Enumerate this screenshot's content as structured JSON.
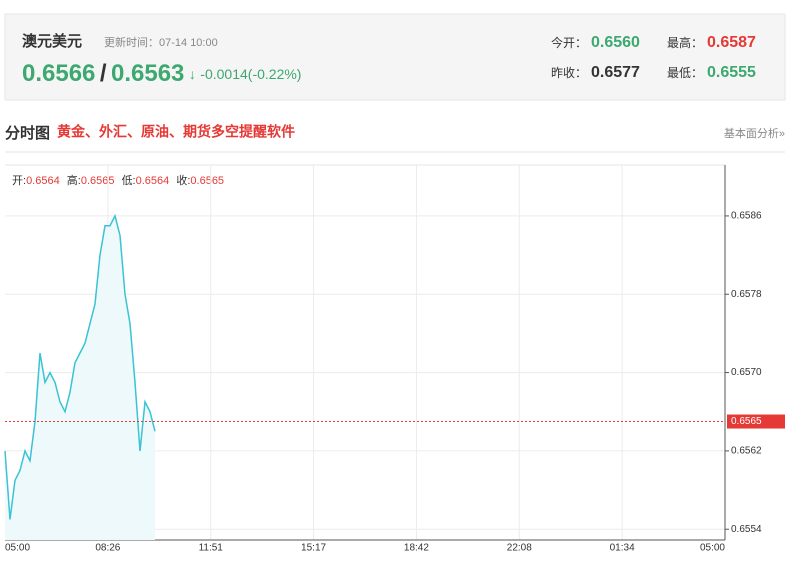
{
  "header": {
    "title": "澳元美元",
    "update_time": "更新时间：07-14 10:00",
    "price_bid": "0.6566",
    "separator": "/",
    "price_ask": "0.6563",
    "arrow": "↓",
    "change": "-0.0014(-0.22%)",
    "stats": [
      {
        "label": "今开：",
        "value": "0.6560"
      },
      {
        "label": "最高：",
        "value": "0.6587"
      },
      {
        "label": "昨收：",
        "value": "0.6577"
      },
      {
        "label": "最低：",
        "value": "0.6555"
      }
    ]
  },
  "section": {
    "title": "分时图",
    "promo": "黄金、外汇、原油、期货多空提醒软件",
    "link": "基本面分析»"
  },
  "chart_data": {
    "type": "line",
    "color": "#39c3d3",
    "grid": true,
    "ohlc": [
      {
        "label": "开:",
        "value": "0.6564"
      },
      {
        "label": "高:",
        "value": "0.6565"
      },
      {
        "label": "低:",
        "value": "0.6564"
      },
      {
        "label": "收:",
        "value": "0.6565"
      }
    ],
    "categories": [
      "05:00",
      "08:26",
      "11:51",
      "15:17",
      "18:42",
      "22:08",
      "01:34",
      "05:00"
    ],
    "x": [
      "05:00",
      "05:10",
      "05:20",
      "05:30",
      "05:40",
      "05:50",
      "06:00",
      "06:10",
      "06:20",
      "06:30",
      "06:40",
      "06:50",
      "07:00",
      "07:10",
      "07:20",
      "07:30",
      "07:40",
      "07:50",
      "08:00",
      "08:10",
      "08:20",
      "08:30",
      "08:40",
      "08:50",
      "09:00",
      "09:10",
      "09:20",
      "09:30",
      "09:40",
      "09:50",
      "10:00"
    ],
    "values": [
      0.6562,
      0.6555,
      0.6559,
      0.656,
      0.6562,
      0.6561,
      0.6565,
      0.6572,
      0.6569,
      0.657,
      0.6569,
      0.6567,
      0.6566,
      0.6568,
      0.6571,
      0.6572,
      0.6573,
      0.6575,
      0.6577,
      0.6582,
      0.6585,
      0.6585,
      0.6586,
      0.6584,
      0.6578,
      0.6575,
      0.6569,
      0.6562,
      0.6567,
      0.6566,
      0.6564
    ],
    "ylim": [
      0.65529,
      0.65912
    ],
    "yticks": [
      {
        "value": 0.6554,
        "label": "0.6554"
      },
      {
        "value": 0.6562,
        "label": "0.6562"
      },
      {
        "value": 0.657,
        "label": "0.6570"
      },
      {
        "value": 0.6578,
        "label": "0.6578"
      },
      0.6586
    ],
    "last_price": 0.6565
  }
}
